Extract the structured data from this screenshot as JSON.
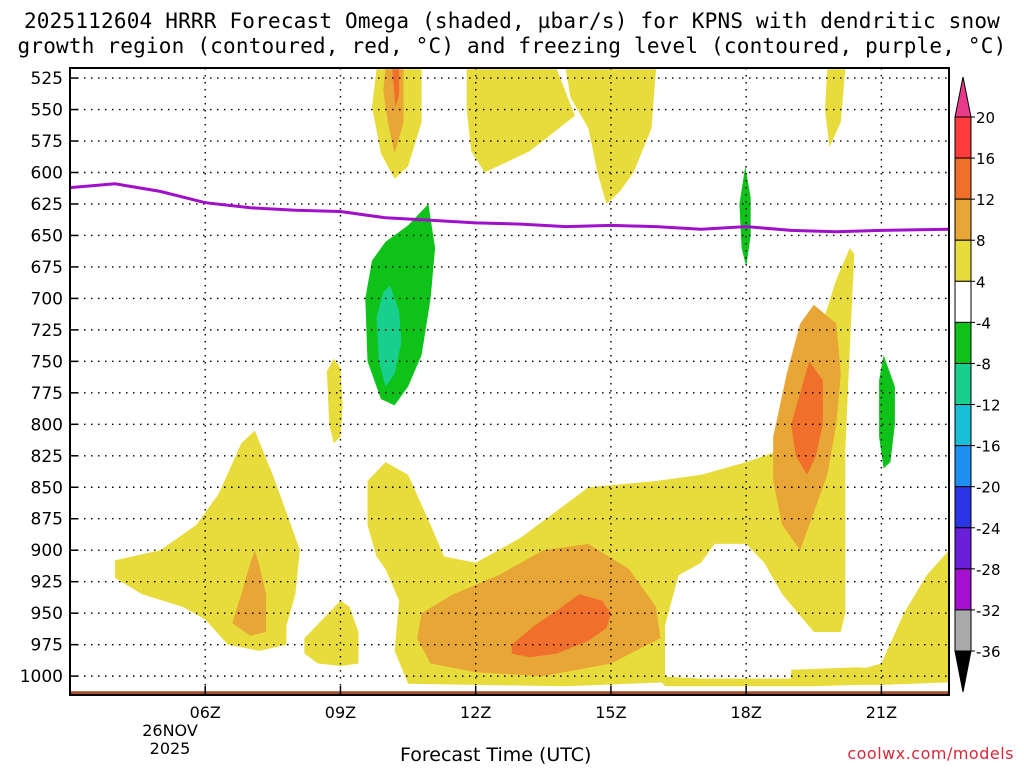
{
  "title_line1": "2025112604 HRRR Forecast Omega (shaded, µbar/s) for KPNS with dendritic snow",
  "title_line2": "growth region (contoured, red, °C) and freezing level (contoured, purple, °C)",
  "x_axis_title": "Forecast Time (UTC)",
  "credit": "coolwx.com/models",
  "date_label": {
    "line1": "26NOV",
    "line2": "2025"
  },
  "chart_data": {
    "type": "time-height contour",
    "x_unit": "hours UTC",
    "x_range": [
      3.0,
      22.5
    ],
    "x_ticks": [
      {
        "value": 6,
        "label": "06Z"
      },
      {
        "value": 9,
        "label": "09Z"
      },
      {
        "value": 12,
        "label": "12Z"
      },
      {
        "value": 15,
        "label": "15Z"
      },
      {
        "value": 18,
        "label": "18Z"
      },
      {
        "value": 21,
        "label": "21Z"
      }
    ],
    "y_unit": "hPa",
    "y_range": [
      517,
      1015
    ],
    "y_ticks": [
      525,
      550,
      575,
      600,
      625,
      650,
      675,
      700,
      725,
      750,
      775,
      800,
      825,
      850,
      875,
      900,
      925,
      950,
      975,
      1000
    ],
    "colorbar": {
      "labels": [
        "20",
        "16",
        "12",
        "8",
        "4",
        "-4",
        "-8",
        "-12",
        "-16",
        "-20",
        "-24",
        "-28",
        "-32",
        "-36"
      ],
      "colors": [
        "#ea3a8a",
        "#ff3b3b",
        "#ef6f2b",
        "#e8a636",
        "#e8dc3c",
        "#ffffff",
        "#0fc21a",
        "#19cf8e",
        "#19bed8",
        "#1e8ff0",
        "#2a36e6",
        "#6a1fd8",
        "#a40fd0",
        "#aaaaaa",
        "#000000"
      ]
    },
    "freezing_level": {
      "color": "#a010c8",
      "points": [
        [
          3.0,
          612
        ],
        [
          4.0,
          609
        ],
        [
          5.0,
          615
        ],
        [
          6.0,
          624
        ],
        [
          7.0,
          628
        ],
        [
          8.0,
          630
        ],
        [
          9.0,
          631
        ],
        [
          10.0,
          636
        ],
        [
          11.0,
          638
        ],
        [
          12.0,
          640
        ],
        [
          13.0,
          641
        ],
        [
          14.0,
          643
        ],
        [
          15.0,
          642
        ],
        [
          16.0,
          643
        ],
        [
          17.0,
          645
        ],
        [
          18.0,
          643
        ],
        [
          19.0,
          646
        ],
        [
          20.0,
          647
        ],
        [
          21.0,
          646
        ],
        [
          22.5,
          645
        ]
      ]
    },
    "ground": {
      "color": "#a5532f",
      "pressure_top": 1012
    },
    "omega_areas": [
      {
        "level": "4",
        "color": "#e8dc3c",
        "points": [
          [
            9.8,
            518
          ],
          [
            10.8,
            518
          ],
          [
            10.8,
            560
          ],
          [
            10.5,
            595
          ],
          [
            10.2,
            605
          ],
          [
            9.9,
            585
          ],
          [
            9.7,
            548
          ]
        ]
      },
      {
        "level": "8",
        "color": "#e8a636",
        "points": [
          [
            10.0,
            518
          ],
          [
            10.4,
            518
          ],
          [
            10.4,
            560
          ],
          [
            10.2,
            585
          ],
          [
            10.05,
            560
          ],
          [
            9.95,
            535
          ]
        ]
      },
      {
        "level": "12",
        "color": "#ef6f2b",
        "points": [
          [
            10.15,
            518
          ],
          [
            10.3,
            518
          ],
          [
            10.3,
            538
          ],
          [
            10.22,
            548
          ]
        ]
      },
      {
        "level": "4",
        "color": "#e8dc3c",
        "points": [
          [
            11.8,
            518
          ],
          [
            13.8,
            518
          ],
          [
            14.2,
            555
          ],
          [
            13.2,
            583
          ],
          [
            12.2,
            600
          ],
          [
            11.9,
            583
          ],
          [
            11.8,
            550
          ]
        ]
      },
      {
        "level": "4",
        "color": "#e8dc3c",
        "points": [
          [
            14.0,
            518
          ],
          [
            16.0,
            518
          ],
          [
            15.9,
            565
          ],
          [
            15.5,
            600
          ],
          [
            15.2,
            615
          ],
          [
            14.9,
            625
          ],
          [
            14.7,
            600
          ],
          [
            14.5,
            565
          ],
          [
            14.1,
            540
          ]
        ]
      },
      {
        "level": "4",
        "color": "#e8dc3c",
        "points": [
          [
            19.8,
            518
          ],
          [
            20.2,
            518
          ],
          [
            20.1,
            560
          ],
          [
            19.85,
            580
          ],
          [
            19.75,
            550
          ]
        ]
      },
      {
        "level": "4",
        "color": "#e8dc3c",
        "points": [
          [
            8.7,
            758
          ],
          [
            8.85,
            748
          ],
          [
            9.0,
            755
          ],
          [
            9.05,
            785
          ],
          [
            9.0,
            810
          ],
          [
            8.85,
            815
          ],
          [
            8.75,
            800
          ]
        ]
      },
      {
        "level": "4",
        "color": "#e8dc3c",
        "points": [
          [
            4.0,
            908
          ],
          [
            5.0,
            900
          ],
          [
            5.8,
            880
          ],
          [
            6.3,
            855
          ],
          [
            6.8,
            815
          ],
          [
            7.1,
            805
          ],
          [
            7.5,
            840
          ],
          [
            7.9,
            880
          ],
          [
            8.1,
            900
          ],
          [
            8.0,
            935
          ],
          [
            7.8,
            960
          ],
          [
            7.8,
            975
          ],
          [
            7.2,
            980
          ],
          [
            6.5,
            975
          ],
          [
            6.0,
            955
          ],
          [
            5.5,
            945
          ],
          [
            4.6,
            935
          ],
          [
            4.0,
            922
          ]
        ]
      },
      {
        "level": "8",
        "color": "#e8a636",
        "points": [
          [
            6.6,
            958
          ],
          [
            6.8,
            935
          ],
          [
            7.0,
            910
          ],
          [
            7.1,
            900
          ],
          [
            7.2,
            912
          ],
          [
            7.35,
            935
          ],
          [
            7.35,
            965
          ],
          [
            7.0,
            968
          ]
        ]
      },
      {
        "level": "4",
        "color": "#e8dc3c",
        "points": [
          [
            8.2,
            970
          ],
          [
            8.6,
            955
          ],
          [
            9.0,
            940
          ],
          [
            9.2,
            945
          ],
          [
            9.4,
            965
          ],
          [
            9.4,
            990
          ],
          [
            9.0,
            992
          ],
          [
            8.5,
            990
          ],
          [
            8.2,
            982
          ]
        ]
      },
      {
        "level": "4",
        "color": "#e8dc3c",
        "points": [
          [
            9.6,
            845
          ],
          [
            10.0,
            830
          ],
          [
            10.5,
            840
          ],
          [
            11.0,
            880
          ],
          [
            11.3,
            905
          ],
          [
            12.0,
            910
          ],
          [
            13.0,
            890
          ],
          [
            14.5,
            850
          ],
          [
            16.0,
            845
          ],
          [
            17.0,
            840
          ],
          [
            18.0,
            830
          ],
          [
            18.8,
            820
          ],
          [
            19.2,
            800
          ],
          [
            19.6,
            730
          ],
          [
            20.0,
            685
          ],
          [
            20.3,
            660
          ],
          [
            20.4,
            665
          ],
          [
            20.3,
            740
          ],
          [
            20.2,
            820
          ],
          [
            20.2,
            900
          ],
          [
            20.2,
            950
          ],
          [
            20.1,
            965
          ],
          [
            19.5,
            965
          ],
          [
            18.8,
            935
          ],
          [
            18.4,
            910
          ],
          [
            18.0,
            895
          ],
          [
            17.3,
            895
          ],
          [
            17.0,
            910
          ],
          [
            16.5,
            920
          ],
          [
            16.2,
            960
          ],
          [
            16.2,
            1005
          ],
          [
            14.0,
            1008
          ],
          [
            12.0,
            1007
          ],
          [
            10.5,
            1006
          ],
          [
            10.2,
            980
          ],
          [
            10.3,
            940
          ],
          [
            10.0,
            915
          ],
          [
            9.8,
            905
          ],
          [
            9.6,
            880
          ]
        ]
      },
      {
        "level": "8",
        "color": "#e8a636",
        "points": [
          [
            10.8,
            950
          ],
          [
            11.5,
            935
          ],
          [
            12.5,
            920
          ],
          [
            13.5,
            900
          ],
          [
            14.5,
            895
          ],
          [
            15.4,
            915
          ],
          [
            16.0,
            945
          ],
          [
            16.1,
            970
          ],
          [
            15.0,
            990
          ],
          [
            13.5,
            1000
          ],
          [
            12.0,
            997
          ],
          [
            11.0,
            990
          ],
          [
            10.7,
            970
          ]
        ]
      },
      {
        "level": "12",
        "color": "#ef6f2b",
        "points": [
          [
            12.8,
            975
          ],
          [
            13.3,
            960
          ],
          [
            13.8,
            948
          ],
          [
            14.3,
            935
          ],
          [
            14.8,
            940
          ],
          [
            15.0,
            950
          ],
          [
            14.9,
            962
          ],
          [
            14.5,
            972
          ],
          [
            13.8,
            982
          ],
          [
            13.2,
            985
          ],
          [
            12.8,
            982
          ]
        ]
      },
      {
        "level": "8",
        "color": "#e8a636",
        "points": [
          [
            18.6,
            810
          ],
          [
            18.9,
            760
          ],
          [
            19.2,
            720
          ],
          [
            19.5,
            705
          ],
          [
            20.0,
            720
          ],
          [
            20.1,
            760
          ],
          [
            20.0,
            800
          ],
          [
            19.8,
            840
          ],
          [
            19.5,
            870
          ],
          [
            19.2,
            900
          ],
          [
            18.8,
            880
          ],
          [
            18.6,
            845
          ]
        ]
      },
      {
        "level": "12",
        "color": "#ef6f2b",
        "points": [
          [
            19.0,
            800
          ],
          [
            19.2,
            775
          ],
          [
            19.4,
            750
          ],
          [
            19.7,
            765
          ],
          [
            19.7,
            800
          ],
          [
            19.55,
            825
          ],
          [
            19.35,
            840
          ],
          [
            19.1,
            825
          ]
        ]
      },
      {
        "level": "4",
        "color": "#e8dc3c",
        "points": [
          [
            16.0,
            1000
          ],
          [
            17.0,
            1002
          ],
          [
            18.0,
            1002
          ],
          [
            19.0,
            1002
          ],
          [
            20.5,
            995
          ],
          [
            21.0,
            990
          ],
          [
            21.5,
            950
          ],
          [
            22.0,
            920
          ],
          [
            22.5,
            900
          ],
          [
            22.5,
            1005
          ],
          [
            21.0,
            1007
          ],
          [
            20.5,
            1007
          ],
          [
            19.5,
            1008
          ],
          [
            18.0,
            1008
          ],
          [
            16.2,
            1008
          ]
        ]
      },
      {
        "level": "4",
        "color": "#e8dc3c",
        "points": [
          [
            19.0,
            995
          ],
          [
            20.5,
            993
          ],
          [
            21.0,
            995
          ],
          [
            20.5,
            1003
          ],
          [
            19.5,
            1004
          ],
          [
            19.0,
            1003
          ]
        ]
      },
      {
        "level": "-4",
        "color": "#0fc21a",
        "points": [
          [
            9.55,
            700
          ],
          [
            9.7,
            670
          ],
          [
            10.0,
            655
          ],
          [
            10.5,
            642
          ],
          [
            10.95,
            625
          ],
          [
            11.1,
            660
          ],
          [
            11.0,
            700
          ],
          [
            10.8,
            745
          ],
          [
            10.5,
            770
          ],
          [
            10.2,
            785
          ],
          [
            9.9,
            780
          ],
          [
            9.6,
            750
          ]
        ]
      },
      {
        "level": "-8",
        "color": "#19cf8e",
        "points": [
          [
            9.8,
            715
          ],
          [
            9.95,
            695
          ],
          [
            10.1,
            690
          ],
          [
            10.3,
            710
          ],
          [
            10.35,
            735
          ],
          [
            10.2,
            760
          ],
          [
            10.0,
            770
          ],
          [
            9.85,
            750
          ]
        ]
      },
      {
        "level": "-4",
        "color": "#0fc21a",
        "points": [
          [
            17.85,
            625
          ],
          [
            17.98,
            595
          ],
          [
            18.1,
            620
          ],
          [
            18.1,
            650
          ],
          [
            18.0,
            675
          ],
          [
            17.9,
            660
          ]
        ]
      },
      {
        "level": "-4",
        "color": "#0fc21a",
        "points": [
          [
            20.95,
            765
          ],
          [
            21.05,
            745
          ],
          [
            21.3,
            770
          ],
          [
            21.3,
            800
          ],
          [
            21.2,
            830
          ],
          [
            21.05,
            835
          ],
          [
            20.95,
            810
          ]
        ]
      }
    ]
  }
}
